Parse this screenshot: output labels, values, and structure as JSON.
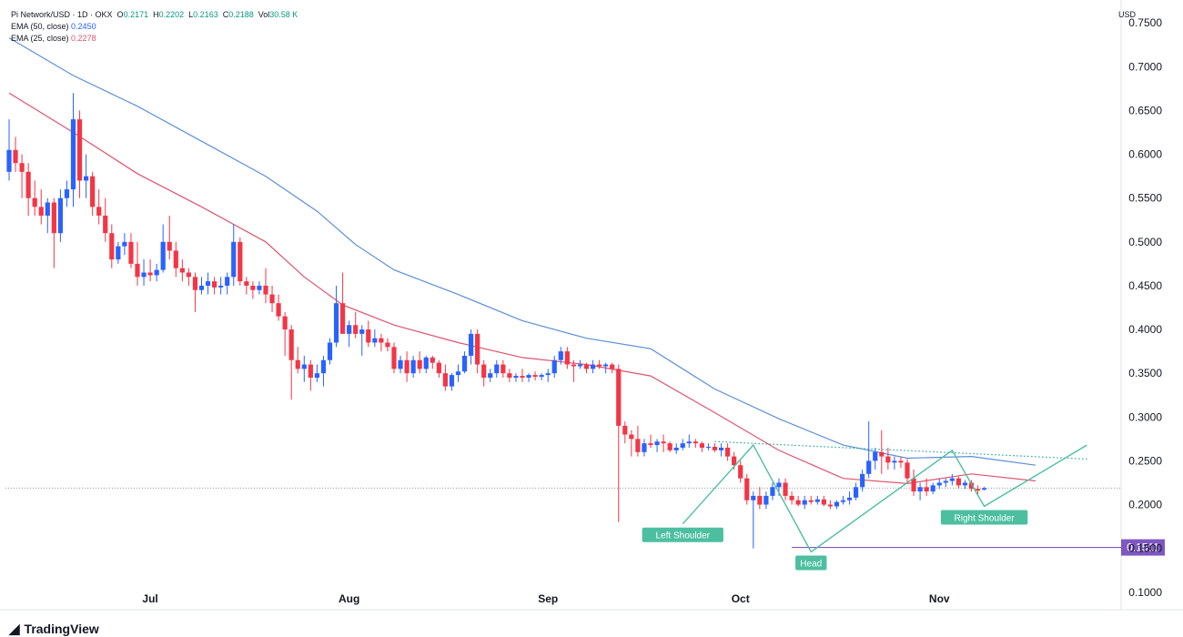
{
  "header": {
    "symbol": "Pi Network/USD · 1D · OKX",
    "o_label": "O",
    "o": "0.2171",
    "h_label": "H",
    "h": "0.2202",
    "l_label": "L",
    "l": "0.2163",
    "c_label": "C",
    "c": "0.2188",
    "vol_label": "Vol",
    "vol": "30.58 K",
    "ema50_label": "EMA (50, close)",
    "ema50_value": "0.2450",
    "ema25_label": "EMA (25, close)",
    "ema25_value": "0.2278"
  },
  "currency": "USD",
  "brand": "TradingView",
  "colors": {
    "up": "#2962ff",
    "down": "#f23645",
    "ema50": "#5b8fd9",
    "ema25": "#e0546d",
    "pattern": "#4dbfa0",
    "support": "#7e57c2",
    "resistance": "#26a69a"
  },
  "chart_data": {
    "type": "candlestick",
    "title": "",
    "ylim": [
      0.08,
      0.77
    ],
    "y_ticks": [
      "0.7500",
      "0.7000",
      "0.6500",
      "0.6000",
      "0.5500",
      "0.5000",
      "0.4500",
      "0.4000",
      "0.3500",
      "0.3000",
      "0.2500",
      "0.2000",
      "0.1500",
      "0.1000"
    ],
    "x_ticks": [
      {
        "label": "Jul",
        "day": 22
      },
      {
        "label": "Aug",
        "day": 53
      },
      {
        "label": "Sep",
        "day": 84
      },
      {
        "label": "Oct",
        "day": 114
      },
      {
        "label": "Nov",
        "day": 145
      }
    ],
    "ohlc": [
      [
        0.58,
        0.64,
        0.57,
        0.605
      ],
      [
        0.605,
        0.62,
        0.58,
        0.59
      ],
      [
        0.59,
        0.6,
        0.55,
        0.58
      ],
      [
        0.58,
        0.59,
        0.53,
        0.55
      ],
      [
        0.55,
        0.57,
        0.53,
        0.54
      ],
      [
        0.54,
        0.56,
        0.52,
        0.53
      ],
      [
        0.53,
        0.55,
        0.51,
        0.545
      ],
      [
        0.545,
        0.55,
        0.47,
        0.51
      ],
      [
        0.51,
        0.56,
        0.5,
        0.55
      ],
      [
        0.55,
        0.57,
        0.54,
        0.56
      ],
      [
        0.56,
        0.67,
        0.54,
        0.64
      ],
      [
        0.64,
        0.65,
        0.55,
        0.57
      ],
      [
        0.57,
        0.6,
        0.55,
        0.575
      ],
      [
        0.575,
        0.58,
        0.53,
        0.54
      ],
      [
        0.54,
        0.56,
        0.52,
        0.53
      ],
      [
        0.53,
        0.55,
        0.5,
        0.51
      ],
      [
        0.51,
        0.52,
        0.47,
        0.48
      ],
      [
        0.48,
        0.5,
        0.475,
        0.495
      ],
      [
        0.495,
        0.51,
        0.485,
        0.5
      ],
      [
        0.5,
        0.51,
        0.47,
        0.475
      ],
      [
        0.475,
        0.5,
        0.45,
        0.46
      ],
      [
        0.46,
        0.48,
        0.45,
        0.465
      ],
      [
        0.465,
        0.48,
        0.455,
        0.462
      ],
      [
        0.462,
        0.475,
        0.455,
        0.468
      ],
      [
        0.468,
        0.52,
        0.465,
        0.5
      ],
      [
        0.5,
        0.53,
        0.48,
        0.49
      ],
      [
        0.49,
        0.5,
        0.46,
        0.47
      ],
      [
        0.47,
        0.48,
        0.455,
        0.465
      ],
      [
        0.465,
        0.47,
        0.45,
        0.46
      ],
      [
        0.46,
        0.465,
        0.42,
        0.445
      ],
      [
        0.445,
        0.46,
        0.44,
        0.45
      ],
      [
        0.45,
        0.465,
        0.44,
        0.455
      ],
      [
        0.455,
        0.46,
        0.44,
        0.448
      ],
      [
        0.448,
        0.46,
        0.44,
        0.45
      ],
      [
        0.45,
        0.465,
        0.44,
        0.46
      ],
      [
        0.46,
        0.52,
        0.45,
        0.5
      ],
      [
        0.5,
        0.505,
        0.45,
        0.455
      ],
      [
        0.455,
        0.46,
        0.44,
        0.45
      ],
      [
        0.45,
        0.455,
        0.435,
        0.445
      ],
      [
        0.445,
        0.455,
        0.44,
        0.45
      ],
      [
        0.45,
        0.47,
        0.43,
        0.44
      ],
      [
        0.44,
        0.45,
        0.42,
        0.43
      ],
      [
        0.43,
        0.44,
        0.41,
        0.415
      ],
      [
        0.415,
        0.42,
        0.37,
        0.4
      ],
      [
        0.4,
        0.405,
        0.32,
        0.365
      ],
      [
        0.365,
        0.38,
        0.35,
        0.355
      ],
      [
        0.355,
        0.37,
        0.34,
        0.36
      ],
      [
        0.36,
        0.365,
        0.33,
        0.345
      ],
      [
        0.345,
        0.36,
        0.34,
        0.35
      ],
      [
        0.35,
        0.37,
        0.335,
        0.365
      ],
      [
        0.365,
        0.39,
        0.36,
        0.385
      ],
      [
        0.385,
        0.45,
        0.38,
        0.43
      ],
      [
        0.43,
        0.465,
        0.4,
        0.395
      ],
      [
        0.395,
        0.41,
        0.38,
        0.405
      ],
      [
        0.405,
        0.42,
        0.39,
        0.395
      ],
      [
        0.395,
        0.405,
        0.37,
        0.4
      ],
      [
        0.4,
        0.41,
        0.38,
        0.385
      ],
      [
        0.385,
        0.4,
        0.38,
        0.39
      ],
      [
        0.39,
        0.395,
        0.375,
        0.385
      ],
      [
        0.385,
        0.39,
        0.375,
        0.38
      ],
      [
        0.38,
        0.385,
        0.35,
        0.355
      ],
      [
        0.355,
        0.37,
        0.35,
        0.365
      ],
      [
        0.365,
        0.375,
        0.34,
        0.35
      ],
      [
        0.35,
        0.37,
        0.345,
        0.365
      ],
      [
        0.365,
        0.375,
        0.35,
        0.355
      ],
      [
        0.355,
        0.37,
        0.35,
        0.368
      ],
      [
        0.368,
        0.37,
        0.355,
        0.362
      ],
      [
        0.362,
        0.365,
        0.345,
        0.35
      ],
      [
        0.35,
        0.36,
        0.33,
        0.335
      ],
      [
        0.335,
        0.35,
        0.33,
        0.348
      ],
      [
        0.348,
        0.36,
        0.34,
        0.352
      ],
      [
        0.352,
        0.375,
        0.35,
        0.37
      ],
      [
        0.37,
        0.4,
        0.36,
        0.395
      ],
      [
        0.395,
        0.4,
        0.35,
        0.36
      ],
      [
        0.36,
        0.365,
        0.335,
        0.345
      ],
      [
        0.345,
        0.355,
        0.34,
        0.35
      ],
      [
        0.35,
        0.365,
        0.345,
        0.36
      ],
      [
        0.36,
        0.365,
        0.345,
        0.35
      ],
      [
        0.35,
        0.355,
        0.34,
        0.345
      ],
      [
        0.345,
        0.35,
        0.34,
        0.347
      ],
      [
        0.347,
        0.355,
        0.34,
        0.345
      ],
      [
        0.345,
        0.35,
        0.34,
        0.348
      ],
      [
        0.348,
        0.352,
        0.342,
        0.346
      ],
      [
        0.346,
        0.35,
        0.342,
        0.348
      ],
      [
        0.348,
        0.355,
        0.34,
        0.35
      ],
      [
        0.35,
        0.37,
        0.345,
        0.365
      ],
      [
        0.365,
        0.38,
        0.36,
        0.375
      ],
      [
        0.375,
        0.38,
        0.355,
        0.36
      ],
      [
        0.36,
        0.365,
        0.34,
        0.358
      ],
      [
        0.358,
        0.365,
        0.355,
        0.36
      ],
      [
        0.36,
        0.362,
        0.35,
        0.355
      ],
      [
        0.355,
        0.365,
        0.35,
        0.36
      ],
      [
        0.36,
        0.365,
        0.355,
        0.358
      ],
      [
        0.358,
        0.362,
        0.35,
        0.36
      ],
      [
        0.36,
        0.362,
        0.35,
        0.355
      ],
      [
        0.355,
        0.36,
        0.18,
        0.29
      ],
      [
        0.29,
        0.295,
        0.27,
        0.28
      ],
      [
        0.28,
        0.285,
        0.255,
        0.275
      ],
      [
        0.275,
        0.29,
        0.255,
        0.26
      ],
      [
        0.26,
        0.275,
        0.255,
        0.27
      ],
      [
        0.27,
        0.28,
        0.265,
        0.268
      ],
      [
        0.268,
        0.275,
        0.26,
        0.272
      ],
      [
        0.272,
        0.28,
        0.26,
        0.27
      ],
      [
        0.27,
        0.272,
        0.26,
        0.262
      ],
      [
        0.262,
        0.27,
        0.258,
        0.265
      ],
      [
        0.265,
        0.275,
        0.262,
        0.27
      ],
      [
        0.27,
        0.28,
        0.265,
        0.272
      ],
      [
        0.272,
        0.275,
        0.265,
        0.27
      ],
      [
        0.27,
        0.272,
        0.26,
        0.265
      ],
      [
        0.265,
        0.27,
        0.262,
        0.266
      ],
      [
        0.266,
        0.27,
        0.26,
        0.262
      ],
      [
        0.262,
        0.27,
        0.255,
        0.265
      ],
      [
        0.265,
        0.27,
        0.25,
        0.255
      ],
      [
        0.255,
        0.26,
        0.24,
        0.245
      ],
      [
        0.245,
        0.25,
        0.225,
        0.23
      ],
      [
        0.23,
        0.235,
        0.2,
        0.205
      ],
      [
        0.205,
        0.215,
        0.15,
        0.21
      ],
      [
        0.21,
        0.22,
        0.195,
        0.2
      ],
      [
        0.2,
        0.215,
        0.195,
        0.21
      ],
      [
        0.21,
        0.225,
        0.205,
        0.22
      ],
      [
        0.22,
        0.23,
        0.21,
        0.225
      ],
      [
        0.225,
        0.23,
        0.205,
        0.21
      ],
      [
        0.21,
        0.215,
        0.2,
        0.205
      ],
      [
        0.205,
        0.21,
        0.198,
        0.2
      ],
      [
        0.2,
        0.21,
        0.195,
        0.205
      ],
      [
        0.205,
        0.21,
        0.2,
        0.203
      ],
      [
        0.203,
        0.21,
        0.2,
        0.206
      ],
      [
        0.206,
        0.21,
        0.198,
        0.2
      ],
      [
        0.2,
        0.205,
        0.195,
        0.198
      ],
      [
        0.198,
        0.205,
        0.195,
        0.203
      ],
      [
        0.203,
        0.21,
        0.2,
        0.205
      ],
      [
        0.205,
        0.215,
        0.2,
        0.208
      ],
      [
        0.208,
        0.225,
        0.205,
        0.22
      ],
      [
        0.22,
        0.24,
        0.215,
        0.235
      ],
      [
        0.235,
        0.295,
        0.23,
        0.25
      ],
      [
        0.25,
        0.265,
        0.24,
        0.26
      ],
      [
        0.26,
        0.285,
        0.235,
        0.255
      ],
      [
        0.255,
        0.265,
        0.24,
        0.248
      ],
      [
        0.248,
        0.255,
        0.24,
        0.25
      ],
      [
        0.25,
        0.255,
        0.242,
        0.248
      ],
      [
        0.248,
        0.252,
        0.225,
        0.23
      ],
      [
        0.23,
        0.24,
        0.21,
        0.215
      ],
      [
        0.215,
        0.225,
        0.205,
        0.22
      ],
      [
        0.22,
        0.23,
        0.21,
        0.215
      ],
      [
        0.215,
        0.225,
        0.212,
        0.222
      ],
      [
        0.222,
        0.23,
        0.218,
        0.225
      ],
      [
        0.225,
        0.23,
        0.22,
        0.227
      ],
      [
        0.227,
        0.235,
        0.222,
        0.23
      ],
      [
        0.23,
        0.232,
        0.218,
        0.222
      ],
      [
        0.222,
        0.228,
        0.218,
        0.225
      ],
      [
        0.225,
        0.228,
        0.215,
        0.218
      ],
      [
        0.218,
        0.222,
        0.212,
        0.216
      ],
      [
        0.2171,
        0.2202,
        0.2163,
        0.2188
      ]
    ],
    "ema50": [
      [
        0,
        0.733
      ],
      [
        10,
        0.69
      ],
      [
        20,
        0.655
      ],
      [
        30,
        0.615
      ],
      [
        40,
        0.575
      ],
      [
        48,
        0.535
      ],
      [
        54,
        0.497
      ],
      [
        60,
        0.468
      ],
      [
        70,
        0.44
      ],
      [
        80,
        0.41
      ],
      [
        90,
        0.39
      ],
      [
        100,
        0.378
      ],
      [
        110,
        0.332
      ],
      [
        120,
        0.298
      ],
      [
        130,
        0.268
      ],
      [
        140,
        0.253
      ],
      [
        150,
        0.255
      ],
      [
        160,
        0.245
      ]
    ],
    "ema25": [
      [
        0,
        0.67
      ],
      [
        10,
        0.625
      ],
      [
        20,
        0.578
      ],
      [
        30,
        0.54
      ],
      [
        40,
        0.5
      ],
      [
        46,
        0.46
      ],
      [
        52,
        0.428
      ],
      [
        60,
        0.405
      ],
      [
        70,
        0.385
      ],
      [
        80,
        0.368
      ],
      [
        90,
        0.36
      ],
      [
        100,
        0.347
      ],
      [
        110,
        0.305
      ],
      [
        120,
        0.262
      ],
      [
        130,
        0.23
      ],
      [
        140,
        0.224
      ],
      [
        150,
        0.235
      ],
      [
        160,
        0.227
      ]
    ],
    "resistance_line": [
      [
        110,
        0.272
      ],
      [
        168,
        0.252
      ]
    ],
    "support_line": {
      "start": 122,
      "end": 168,
      "value": 0.1511,
      "label": "0.1511"
    },
    "current_price_line": 0.2188,
    "pattern": [
      [
        105,
        0.178
      ],
      [
        116,
        0.268
      ],
      [
        125,
        0.146
      ],
      [
        147,
        0.262
      ],
      [
        152,
        0.198
      ],
      [
        168,
        0.268
      ]
    ],
    "annotations": [
      {
        "text": "Left Shoulder",
        "day": 105,
        "y": 0.178,
        "position": "below"
      },
      {
        "text": "Head",
        "day": 125,
        "y": 0.146,
        "position": "below"
      },
      {
        "text": "Right Shoulder",
        "day": 152,
        "y": 0.198,
        "position": "below"
      }
    ]
  }
}
